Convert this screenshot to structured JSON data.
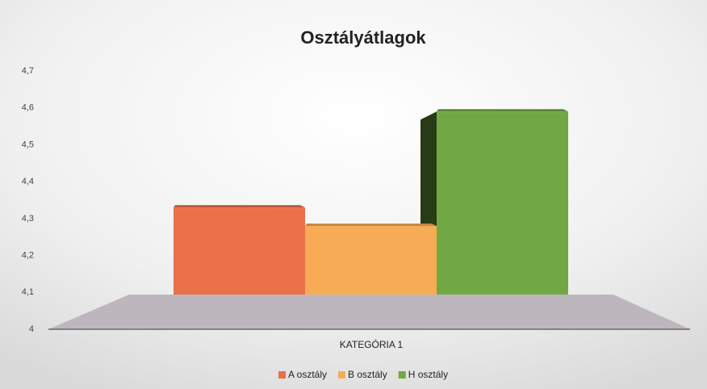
{
  "chart_data": {
    "type": "bar3d",
    "title": "Osztályátlagok",
    "categories": [
      "KATEGÓRIA 1"
    ],
    "series": [
      {
        "name": "A osztály",
        "color": "#ea7048",
        "values": [
          4.33
        ]
      },
      {
        "name": "B osztály",
        "color": "#f7ab55",
        "values": [
          4.28
        ]
      },
      {
        "name": "H osztály",
        "color": "#72a843",
        "values": [
          4.59
        ]
      }
    ],
    "ylim": [
      4,
      4.7
    ],
    "yticks": [
      4,
      {
        "value": 4.1,
        "label": "4,1"
      },
      {
        "value": 4.2,
        "label": "4,2"
      },
      {
        "value": 4.3,
        "label": "4,3"
      },
      {
        "value": 4.4,
        "label": "4,4"
      },
      {
        "value": 4.5,
        "label": "4,5"
      },
      {
        "value": 4.6,
        "label": "4,6"
      },
      {
        "value": 4.7,
        "label": "4,7"
      }
    ],
    "grid": false,
    "legend": "bottom"
  }
}
